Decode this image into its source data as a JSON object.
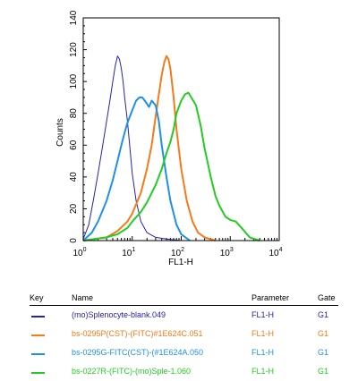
{
  "chart_data": {
    "type": "line",
    "title": "",
    "xlabel": "FL1-H",
    "ylabel": "Counts",
    "xscale": "log",
    "xlim": [
      1,
      10000
    ],
    "ylim": [
      0,
      140
    ],
    "xticks": [
      {
        "base": "10",
        "exp": "0",
        "value": 1
      },
      {
        "base": "10",
        "exp": "1",
        "value": 10
      },
      {
        "base": "10",
        "exp": "2",
        "value": 100
      },
      {
        "base": "10",
        "exp": "3",
        "value": 1000
      },
      {
        "base": "10",
        "exp": "4",
        "value": 10000
      }
    ],
    "yticks": [
      "0",
      "20",
      "40",
      "60",
      "80",
      "100",
      "120",
      "140"
    ],
    "series": [
      {
        "name": "(mo)Splenocyte-blank.049",
        "color": "#2323b0",
        "x": [
          1,
          1.3,
          1.6,
          2,
          2.5,
          3,
          3.5,
          4,
          4.5,
          5,
          5.5,
          6,
          6.5,
          7,
          8,
          9,
          10,
          12,
          15,
          20,
          30,
          50,
          100
        ],
        "y": [
          1,
          10,
          25,
          42,
          60,
          75,
          88,
          100,
          110,
          116,
          114,
          108,
          100,
          90,
          75,
          58,
          42,
          25,
          12,
          5,
          2,
          1,
          0
        ]
      },
      {
        "name": "bs-0295P(CST)-(FITC)#1E624C.051",
        "color": "#f57a1a",
        "x": [
          1,
          3,
          5,
          8,
          10,
          15,
          20,
          25,
          30,
          35,
          40,
          45,
          50,
          55,
          60,
          70,
          80,
          100,
          130,
          170,
          220,
          300,
          500
        ],
        "y": [
          0,
          2,
          6,
          12,
          17,
          30,
          45,
          60,
          78,
          92,
          104,
          112,
          116,
          114,
          108,
          90,
          70,
          45,
          25,
          12,
          5,
          2,
          0
        ]
      },
      {
        "name": "bs-0295G-FITC(CST)-(#1E624A.050",
        "color": "#1e90e6",
        "x": [
          1,
          1.5,
          2,
          3,
          4,
          5,
          6,
          7,
          8,
          10,
          12,
          14,
          16,
          18,
          20,
          22,
          25,
          30,
          35,
          40,
          50,
          60,
          80,
          100,
          150
        ],
        "y": [
          0,
          5,
          12,
          25,
          38,
          50,
          60,
          68,
          74,
          82,
          88,
          90,
          90,
          88,
          86,
          84,
          88,
          85,
          75,
          60,
          40,
          25,
          10,
          4,
          0
        ]
      },
      {
        "name": "bs-0227R-(FITC)-(mo)Sple-1.060",
        "color": "#22cc22",
        "x": [
          1,
          3,
          5,
          8,
          10,
          15,
          20,
          30,
          40,
          50,
          60,
          70,
          80,
          100,
          120,
          140,
          160,
          200,
          250,
          300,
          400,
          500,
          600,
          800,
          1000,
          1300,
          1700,
          2500,
          4000
        ],
        "y": [
          0,
          2,
          4,
          8,
          12,
          18,
          24,
          35,
          45,
          55,
          62,
          70,
          80,
          88,
          92,
          93,
          90,
          85,
          72,
          58,
          40,
          28,
          22,
          15,
          13,
          12,
          8,
          2,
          0
        ]
      }
    ]
  },
  "key": {
    "headers": {
      "key": "Key",
      "name": "Name",
      "parameter": "Parameter",
      "gate": "Gate"
    },
    "rows": [
      {
        "name": "(mo)Splenocyte-blank.049",
        "parameter": "FL1-H",
        "gate": "G1",
        "color": "#2323b0"
      },
      {
        "name": "bs-0295P(CST)-(FITC)#1E624C.051",
        "parameter": "FL1-H",
        "gate": "G1",
        "color": "#f57a1a"
      },
      {
        "name": "bs-0295G-FITC(CST)-(#1E624A.050",
        "parameter": "FL1-H",
        "gate": "G1",
        "color": "#1e90e6"
      },
      {
        "name": "bs-0227R-(FITC)-(mo)Sple-1.060",
        "parameter": "FL1-H",
        "gate": "G1",
        "color": "#22cc22"
      }
    ]
  }
}
